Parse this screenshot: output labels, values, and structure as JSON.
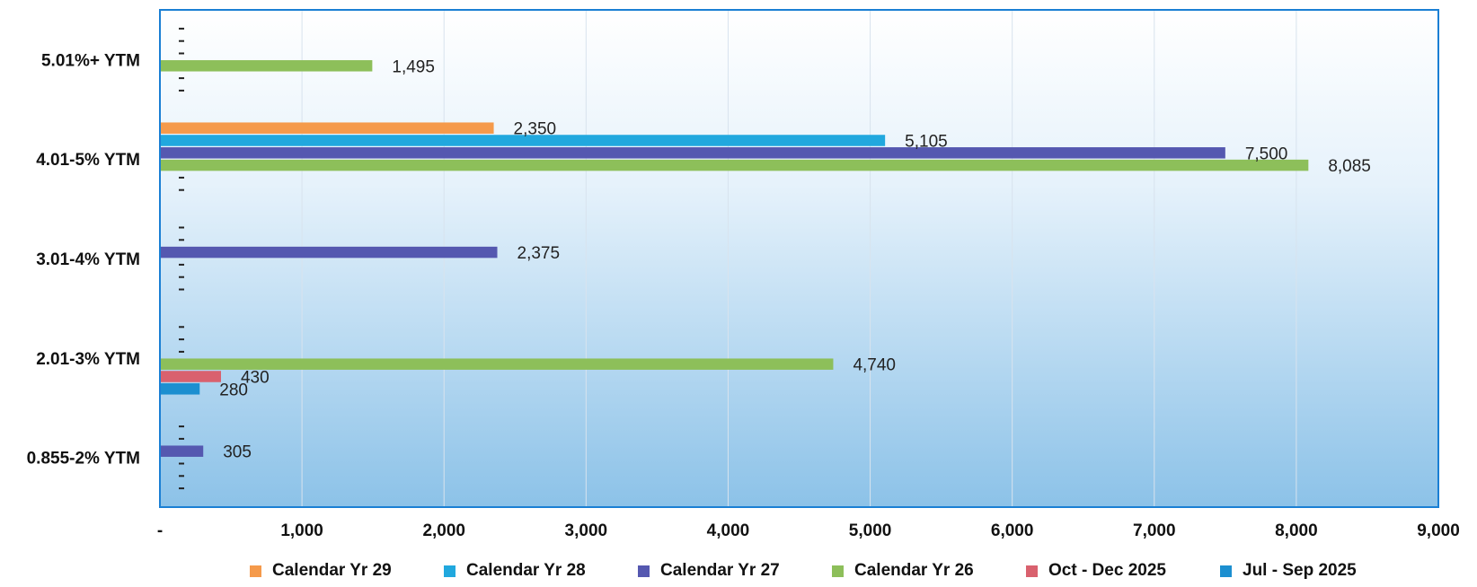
{
  "chart_data": {
    "type": "bar",
    "orientation": "horizontal",
    "categories": [
      "5.01%+ YTM",
      "4.01-5% YTM",
      "3.01-4% YTM",
      "2.01-3% YTM",
      "0.855-2% YTM"
    ],
    "series": [
      {
        "name": "Calendar Yr 29",
        "color": "#f59a4b",
        "values": [
          null,
          2350,
          null,
          null,
          null
        ],
        "labels": [
          null,
          "2,350",
          null,
          null,
          null
        ]
      },
      {
        "name": "Calendar Yr 28",
        "color": "#21a8de",
        "values": [
          null,
          5105,
          null,
          null,
          null
        ],
        "labels": [
          null,
          "5,105",
          null,
          null,
          null
        ]
      },
      {
        "name": "Calendar Yr 27",
        "color": "#5558b0",
        "values": [
          null,
          7500,
          2375,
          null,
          305
        ],
        "labels": [
          null,
          "7,500",
          "2,375",
          null,
          "305"
        ]
      },
      {
        "name": "Calendar Yr 26",
        "color": "#8dbf5a",
        "values": [
          1495,
          8085,
          null,
          4740,
          null
        ],
        "labels": [
          "1,495",
          "8,085",
          null,
          "4,740",
          null
        ]
      },
      {
        "name": "Oct - Dec 2025",
        "color": "#d9616e",
        "values": [
          null,
          null,
          null,
          430,
          null
        ],
        "labels": [
          null,
          null,
          null,
          "430",
          null
        ]
      },
      {
        "name": "Jul - Sep 2025",
        "color": "#1c8fd0",
        "values": [
          null,
          null,
          null,
          280,
          null
        ],
        "labels": [
          null,
          null,
          null,
          "280",
          null
        ]
      }
    ],
    "xlim": [
      0,
      9000
    ],
    "x_ticks": [
      0,
      1000,
      2000,
      3000,
      4000,
      5000,
      6000,
      7000,
      8000,
      9000
    ],
    "x_tick_labels": [
      "-",
      "1,000",
      "2,000",
      "3,000",
      "4,000",
      "5,000",
      "6,000",
      "7,000",
      "8,000",
      "9,000"
    ],
    "zero_label": "-",
    "grid": true,
    "legend_position": "bottom",
    "plot_background": [
      "#ffffff",
      "#8cc2e8"
    ],
    "border_color": "#1a7fd4"
  }
}
